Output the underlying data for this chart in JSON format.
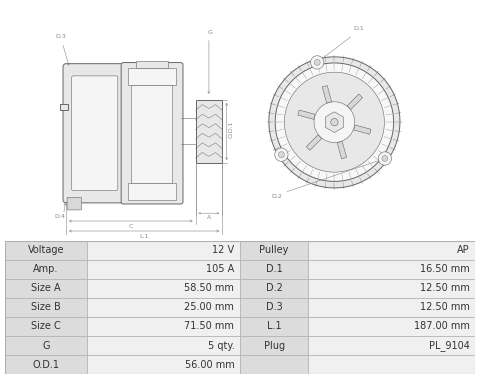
{
  "table_data": {
    "left_col": [
      [
        "Voltage",
        "12 V"
      ],
      [
        "Amp.",
        "105 A"
      ],
      [
        "Size A",
        "58.50 mm"
      ],
      [
        "Size B",
        "25.00 mm"
      ],
      [
        "Size C",
        "71.50 mm"
      ],
      [
        "G",
        "5 qty."
      ],
      [
        "O.D.1",
        "56.00 mm"
      ]
    ],
    "right_col": [
      [
        "Pulley",
        "AP"
      ],
      [
        "D.1",
        "16.50 mm"
      ],
      [
        "D.2",
        "12.50 mm"
      ],
      [
        "D.3",
        "12.50 mm"
      ],
      [
        "L.1",
        "187.00 mm"
      ],
      [
        "Plug",
        "PL_9104"
      ],
      [
        "",
        ""
      ]
    ]
  },
  "table_bg_label": "#dcdcdc",
  "table_bg_value": "#f0f0f0",
  "table_border_color": "#b0b0b0",
  "table_text_color": "#333333",
  "fig_bg": "#ffffff",
  "line_color": "#666666",
  "fill_light": "#f5f5f5",
  "fill_mid": "#e8e8e8",
  "fill_dark": "#d8d8d8",
  "font_size": 7.0
}
